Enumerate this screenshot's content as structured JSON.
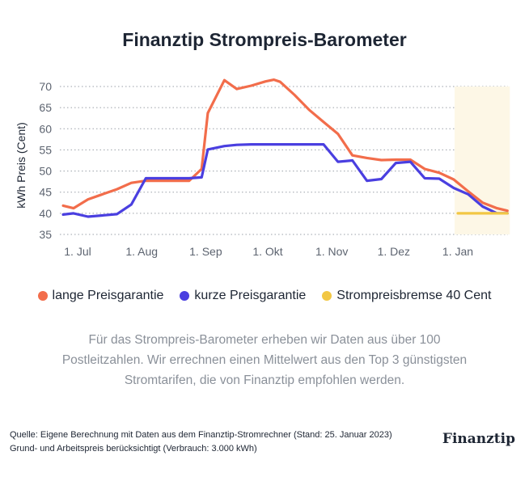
{
  "title": "Finanztip Strompreis-Barometer",
  "description": "Für das Strompreis-Barometer erheben wir Daten aus über 100 Postleitzahlen. Wir errechnen einen Mittelwert aus den Top 3 günstigsten Stromtarifen, die von Finanztip empfohlen werden.",
  "source_line1": "Quelle: Eigene Berechnung mit Daten aus dem Finanztip-Stromrechner (Stand: 25. Januar 2023)",
  "source_line2": "Grund- und Arbeitspreis berücksichtigt (Verbrauch: 3.000 kWh)",
  "brand": "Finanztip",
  "colors": {
    "lange": "#f26d4b",
    "kurze": "#4a3fe0",
    "bremse": "#f2c744",
    "highlight": "#fdf7e6",
    "grid": "#9aa0a8"
  },
  "chart_data": {
    "type": "line",
    "title": "Finanztip Strompreis-Barometer",
    "ylabel": "kWh Preis (Cent)",
    "xlabel": "",
    "ylim": [
      35,
      70
    ],
    "yticks": [
      35,
      40,
      45,
      50,
      55,
      60,
      65,
      70
    ],
    "grid": true,
    "legend_position": "bottom",
    "x_ticks": [
      {
        "label": "1. Jul",
        "date": "2022-07-01"
      },
      {
        "label": "1. Aug",
        "date": "2022-08-01"
      },
      {
        "label": "1. Sep",
        "date": "2022-09-01"
      },
      {
        "label": "1. Okt",
        "date": "2022-10-01"
      },
      {
        "label": "1. Nov",
        "date": "2022-11-01"
      },
      {
        "label": "1. Dez",
        "date": "2022-12-01"
      },
      {
        "label": "1. Jan",
        "date": "2023-01-01"
      }
    ],
    "highlight_range": [
      "2023-01-01",
      "2023-01-25"
    ],
    "series": [
      {
        "name": "lange Preisgarantie",
        "color": "#f26d4b",
        "points": [
          [
            "2022-06-24",
            41.8
          ],
          [
            "2022-06-29",
            41.2
          ],
          [
            "2022-07-06",
            43.3
          ],
          [
            "2022-07-20",
            45.7
          ],
          [
            "2022-07-27",
            47.2
          ],
          [
            "2022-08-03",
            47.7
          ],
          [
            "2022-08-10",
            47.7
          ],
          [
            "2022-08-17",
            47.7
          ],
          [
            "2022-08-24",
            47.7
          ],
          [
            "2022-08-30",
            50.5
          ],
          [
            "2022-09-02",
            63.7
          ],
          [
            "2022-09-10",
            71.5
          ],
          [
            "2022-09-16",
            69.4
          ],
          [
            "2022-09-23",
            70.2
          ],
          [
            "2022-09-30",
            71.2
          ],
          [
            "2022-10-04",
            71.6
          ],
          [
            "2022-10-07",
            71.1
          ],
          [
            "2022-10-14",
            68.0
          ],
          [
            "2022-10-21",
            64.5
          ],
          [
            "2022-10-28",
            61.6
          ],
          [
            "2022-11-04",
            58.8
          ],
          [
            "2022-11-11",
            53.7
          ],
          [
            "2022-11-18",
            53.1
          ],
          [
            "2022-11-25",
            52.6
          ],
          [
            "2022-12-02",
            52.7
          ],
          [
            "2022-12-09",
            52.7
          ],
          [
            "2022-12-16",
            50.5
          ],
          [
            "2022-12-23",
            49.6
          ],
          [
            "2022-12-30",
            48.0
          ],
          [
            "2023-01-06",
            45.2
          ],
          [
            "2023-01-13",
            42.5
          ],
          [
            "2023-01-20",
            41.2
          ],
          [
            "2023-01-25",
            40.6
          ]
        ]
      },
      {
        "name": "kurze Preisgarantie",
        "color": "#4a3fe0",
        "points": [
          [
            "2022-06-24",
            39.7
          ],
          [
            "2022-06-29",
            40.0
          ],
          [
            "2022-07-06",
            39.2
          ],
          [
            "2022-07-20",
            39.8
          ],
          [
            "2022-07-27",
            42.1
          ],
          [
            "2022-08-03",
            48.3
          ],
          [
            "2022-08-10",
            48.3
          ],
          [
            "2022-08-17",
            48.3
          ],
          [
            "2022-08-24",
            48.3
          ],
          [
            "2022-08-30",
            48.5
          ],
          [
            "2022-09-02",
            55.1
          ],
          [
            "2022-09-10",
            55.9
          ],
          [
            "2022-09-16",
            56.2
          ],
          [
            "2022-09-23",
            56.3
          ],
          [
            "2022-09-30",
            56.3
          ],
          [
            "2022-10-07",
            56.3
          ],
          [
            "2022-10-14",
            56.3
          ],
          [
            "2022-10-21",
            56.3
          ],
          [
            "2022-10-28",
            56.3
          ],
          [
            "2022-11-04",
            52.2
          ],
          [
            "2022-11-11",
            52.5
          ],
          [
            "2022-11-18",
            47.7
          ],
          [
            "2022-11-25",
            48.1
          ],
          [
            "2022-12-02",
            51.9
          ],
          [
            "2022-12-09",
            52.2
          ],
          [
            "2022-12-16",
            48.3
          ],
          [
            "2022-12-23",
            48.2
          ],
          [
            "2022-12-30",
            46.0
          ],
          [
            "2023-01-06",
            44.5
          ],
          [
            "2023-01-13",
            41.6
          ],
          [
            "2023-01-20",
            40.0
          ],
          [
            "2023-01-25",
            40.0
          ]
        ]
      },
      {
        "name": "Strompreisbremse 40 Cent",
        "color": "#f2c744",
        "points": [
          [
            "2023-01-01",
            40
          ],
          [
            "2023-01-25",
            40
          ]
        ]
      }
    ]
  }
}
